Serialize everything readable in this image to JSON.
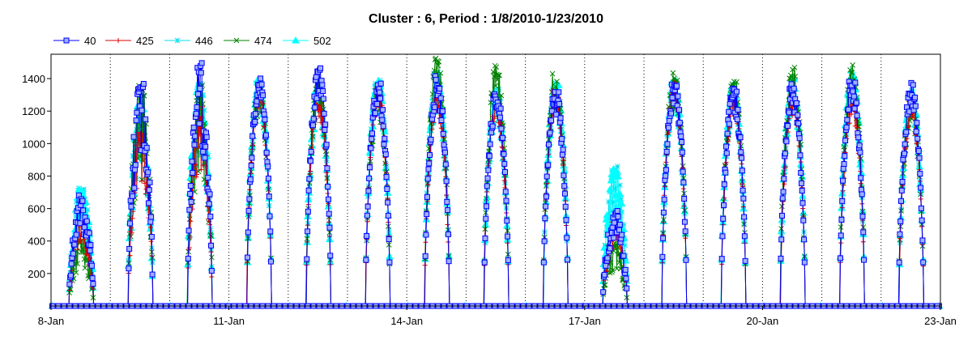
{
  "chart_data": {
    "type": "line",
    "title": "Cluster : 6, Period : 1/8/2010-1/23/2010",
    "xlabel": "",
    "ylabel": "",
    "x_unit": "day",
    "xlim": [
      0,
      15
    ],
    "ylim": [
      0,
      1550
    ],
    "x_ticks": [
      {
        "label": "8-Jan",
        "x": 0
      },
      {
        "label": "11-Jan",
        "x": 3
      },
      {
        "label": "14-Jan",
        "x": 6
      },
      {
        "label": "17-Jan",
        "x": 9
      },
      {
        "label": "20-Jan",
        "x": 12
      },
      {
        "label": "23-Jan",
        "x": 15
      }
    ],
    "y_ticks": [
      200,
      400,
      600,
      800,
      1000,
      1200,
      1400
    ],
    "grid": "vertical dotted lines at each day",
    "legend_position": "top-left",
    "series": [
      {
        "name": "40",
        "color": "#0000ff",
        "marker": "square"
      },
      {
        "name": "425",
        "color": "#dd0000",
        "marker": "plus"
      },
      {
        "name": "446",
        "color": "#00e0f0",
        "marker": "star"
      },
      {
        "name": "474",
        "color": "#008000",
        "marker": "x"
      },
      {
        "name": "502",
        "color": "#00ffff",
        "marker": "triangle"
      }
    ],
    "daily_peaks": [
      {
        "day": "8-Jan",
        "s40": 690,
        "s425": 520,
        "s446": 730,
        "s474": 420,
        "s502": 720
      },
      {
        "day": "9-Jan",
        "s40": 1370,
        "s425": 1100,
        "s446": 1300,
        "s474": 1390,
        "s502": 1300
      },
      {
        "day": "10-Jan",
        "s40": 1500,
        "s425": 1250,
        "s446": 1380,
        "s474": 1390,
        "s502": 1410
      },
      {
        "day": "11-Jan",
        "s40": 1410,
        "s425": 1380,
        "s446": 1410,
        "s474": 1390,
        "s502": 1400
      },
      {
        "day": "12-Jan",
        "s40": 1470,
        "s425": 1310,
        "s446": 1350,
        "s474": 1400,
        "s502": 1350
      },
      {
        "day": "13-Jan",
        "s40": 1390,
        "s425": 1360,
        "s446": 1430,
        "s474": 1350,
        "s502": 1410
      },
      {
        "day": "14-Jan",
        "s40": 1420,
        "s425": 1290,
        "s446": 1460,
        "s474": 1540,
        "s502": 1420
      },
      {
        "day": "15-Jan",
        "s40": 1340,
        "s425": 1290,
        "s446": 1340,
        "s474": 1490,
        "s502": 1330
      },
      {
        "day": "16-Jan",
        "s40": 1340,
        "s425": 1330,
        "s446": 1390,
        "s474": 1440,
        "s502": 1380
      },
      {
        "day": "17-Jan",
        "s40": 590,
        "s425": 520,
        "s446": 860,
        "s474": 390,
        "s502": 860
      },
      {
        "day": "18-Jan",
        "s40": 1400,
        "s425": 1380,
        "s446": 1420,
        "s474": 1450,
        "s502": 1400
      },
      {
        "day": "19-Jan",
        "s40": 1360,
        "s425": 1330,
        "s446": 1370,
        "s474": 1400,
        "s502": 1370
      },
      {
        "day": "20-Jan",
        "s40": 1370,
        "s425": 1330,
        "s446": 1400,
        "s474": 1480,
        "s502": 1420
      },
      {
        "day": "21-Jan",
        "s40": 1420,
        "s425": 1310,
        "s446": 1400,
        "s474": 1490,
        "s502": 1460
      },
      {
        "day": "22-Jan",
        "s40": 1380,
        "s425": 1280,
        "s446": 1340,
        "s474": 1320,
        "s502": 1340
      }
    ]
  }
}
